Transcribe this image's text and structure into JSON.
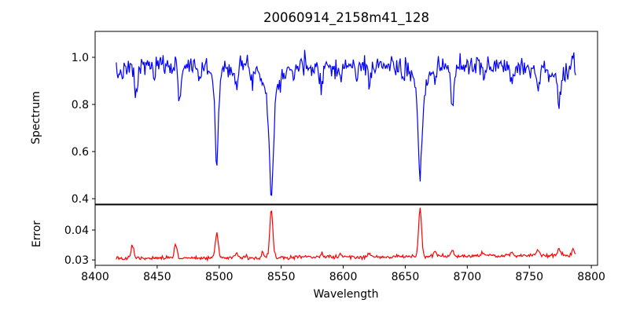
{
  "figure": {
    "background": "#ffffff",
    "frame_color": "#000000"
  },
  "chart_data": {
    "type": "line",
    "title": "20060914_2158m41_128",
    "xlabel": "Wavelength",
    "grid": false,
    "legend": "none",
    "xlim": [
      8400,
      8805
    ],
    "xticks": [
      8400,
      8450,
      8500,
      8550,
      8600,
      8650,
      8700,
      8750,
      8800
    ],
    "x_data_range": [
      8417,
      8788
    ],
    "x_step": 0.7,
    "panels": [
      {
        "name": "spectrum",
        "ylabel": "Spectrum",
        "color": "#0000ff",
        "ylim": [
          0.377,
          1.11
        ],
        "yticks": [
          {
            "value": 1.0,
            "label": "1.0"
          },
          {
            "value": 0.8,
            "label": "0.8"
          },
          {
            "value": 0.6,
            "label": "0.6"
          },
          {
            "value": 0.4,
            "label": "0.4"
          }
        ],
        "continuum": 0.97,
        "noise_sigma": 0.02,
        "noise_skew": -0.008,
        "trend_per_x": 0,
        "seed": 7,
        "features": [
          {
            "center": 8408,
            "amp": -0.05,
            "sigma": 12.0
          },
          {
            "center": 8433,
            "amp": -0.12,
            "sigma": 1.2
          },
          {
            "center": 8448,
            "amp": -0.05,
            "sigma": 1.0
          },
          {
            "center": 8468,
            "amp": -0.13,
            "sigma": 1.3
          },
          {
            "center": 8484,
            "amp": -0.06,
            "sigma": 1.0
          },
          {
            "center": 8498,
            "amp": -0.36,
            "sigma": 1.3
          },
          {
            "center": 8498,
            "amp": -0.05,
            "sigma": 4.0
          },
          {
            "center": 8514,
            "amp": -0.09,
            "sigma": 1.2
          },
          {
            "center": 8527,
            "amp": -0.06,
            "sigma": 1.0
          },
          {
            "center": 8542,
            "amp": -0.42,
            "sigma": 1.6
          },
          {
            "center": 8542,
            "amp": -0.13,
            "sigma": 5.5
          },
          {
            "center": 8560,
            "amp": -0.05,
            "sigma": 1.0
          },
          {
            "center": 8582,
            "amp": -0.07,
            "sigma": 1.2
          },
          {
            "center": 8598,
            "amp": -0.07,
            "sigma": 1.0
          },
          {
            "center": 8611,
            "amp": -0.05,
            "sigma": 0.9
          },
          {
            "center": 8621,
            "amp": -0.07,
            "sigma": 1.0
          },
          {
            "center": 8648,
            "amp": -0.06,
            "sigma": 1.0
          },
          {
            "center": 8662,
            "amp": -0.37,
            "sigma": 1.5
          },
          {
            "center": 8662,
            "amp": -0.12,
            "sigma": 5.0
          },
          {
            "center": 8674,
            "amp": -0.07,
            "sigma": 1.0
          },
          {
            "center": 8688,
            "amp": -0.16,
            "sigma": 1.3
          },
          {
            "center": 8713,
            "amp": -0.06,
            "sigma": 1.0
          },
          {
            "center": 8736,
            "amp": -0.07,
            "sigma": 1.1
          },
          {
            "center": 8757,
            "amp": -0.07,
            "sigma": 1.0
          },
          {
            "center": 8774,
            "amp": -0.12,
            "sigma": 1.4
          },
          {
            "center": 8775,
            "amp": -0.035,
            "sigma": 14.0
          },
          {
            "center": 8785,
            "amp": 0.09,
            "sigma": 0.7
          }
        ]
      },
      {
        "name": "error",
        "ylabel": "Error",
        "color": "#ff0000",
        "ylim": [
          0.0282,
          0.0484
        ],
        "yticks": [
          {
            "value": 0.04,
            "label": "0.04"
          },
          {
            "value": 0.03,
            "label": "0.03"
          }
        ],
        "continuum": 0.0302,
        "noise_sigma": 0.00032,
        "noise_skew": 0.00025,
        "trend_per_x": 3.2e-06,
        "seed": 13,
        "features": [
          {
            "center": 8430,
            "amp": 0.005,
            "sigma": 1.0
          },
          {
            "center": 8465,
            "amp": 0.005,
            "sigma": 1.0
          },
          {
            "center": 8498,
            "amp": 0.008,
            "sigma": 1.2
          },
          {
            "center": 8514,
            "amp": 0.0015,
            "sigma": 1.0
          },
          {
            "center": 8535,
            "amp": 0.002,
            "sigma": 0.9
          },
          {
            "center": 8542,
            "amp": 0.0163,
            "sigma": 1.2
          },
          {
            "center": 8565,
            "amp": 0.0008,
            "sigma": 1.0
          },
          {
            "center": 8583,
            "amp": 0.0012,
            "sigma": 1.0
          },
          {
            "center": 8598,
            "amp": 0.001,
            "sigma": 1.0
          },
          {
            "center": 8621,
            "amp": 0.0008,
            "sigma": 1.0
          },
          {
            "center": 8662,
            "amp": 0.016,
            "sigma": 1.2
          },
          {
            "center": 8674,
            "amp": 0.0015,
            "sigma": 1.0
          },
          {
            "center": 8688,
            "amp": 0.002,
            "sigma": 1.0
          },
          {
            "center": 8713,
            "amp": 0.001,
            "sigma": 1.0
          },
          {
            "center": 8736,
            "amp": 0.0012,
            "sigma": 1.0
          },
          {
            "center": 8757,
            "amp": 0.0015,
            "sigma": 1.0
          },
          {
            "center": 8774,
            "amp": 0.002,
            "sigma": 1.2
          },
          {
            "center": 8785,
            "amp": 0.002,
            "sigma": 0.8
          }
        ]
      }
    ]
  }
}
